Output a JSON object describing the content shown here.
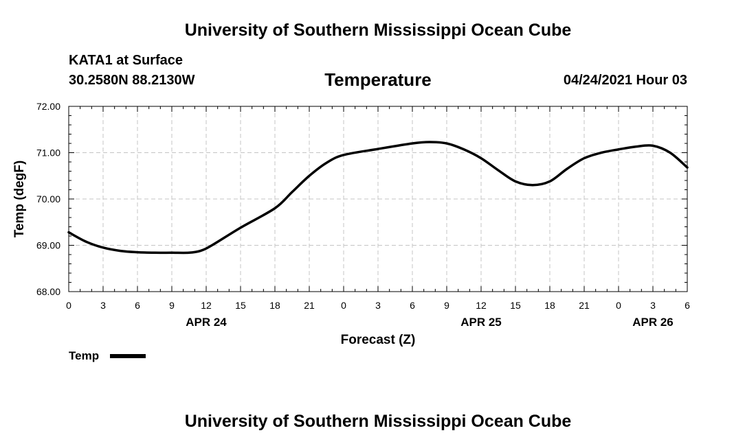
{
  "header": {
    "title": "University of Southern Mississippi Ocean Cube",
    "station": "KATA1 at Surface",
    "location": "30.2580N  88.2130W",
    "variable": "Temperature",
    "datetime": "04/24/2021 Hour 03"
  },
  "footer": {
    "title": "University of Southern Mississippi Ocean Cube"
  },
  "legend": {
    "label": "Temp"
  },
  "chart_data": {
    "type": "line",
    "title": "Temperature",
    "xlabel": "Forecast (Z)",
    "ylabel": "Temp (degF)",
    "xlim": [
      0,
      54
    ],
    "ylim": [
      68,
      72
    ],
    "grid": true,
    "legend_position": "bottom-left",
    "y_ticks": [
      68,
      69,
      70,
      71,
      72
    ],
    "y_tick_labels": [
      "68.00",
      "69.00",
      "70.00",
      "71.00",
      "72.00"
    ],
    "x_ticks": [
      0,
      3,
      6,
      9,
      12,
      15,
      18,
      21,
      24,
      27,
      30,
      33,
      36,
      39,
      42,
      45,
      48,
      51,
      54
    ],
    "x_tick_labels": [
      "0",
      "3",
      "6",
      "9",
      "12",
      "15",
      "18",
      "21",
      "0",
      "3",
      "6",
      "9",
      "12",
      "15",
      "18",
      "21",
      "0",
      "3",
      "6"
    ],
    "date_labels": [
      {
        "x": 12,
        "label": "APR 24"
      },
      {
        "x": 36,
        "label": "APR 25"
      },
      {
        "x": 51,
        "label": "APR 26"
      }
    ],
    "series": [
      {
        "name": "Temp",
        "color": "#000000",
        "x": [
          0,
          1.5,
          3,
          4.5,
          6,
          7.5,
          9,
          10.5,
          11.5,
          12.5,
          15,
          18,
          19.5,
          21,
          22.5,
          24,
          27,
          30,
          31.5,
          33,
          34.5,
          36,
          37.5,
          39,
          40.5,
          42,
          43.5,
          45,
          46.5,
          48,
          49.5,
          51,
          52.5,
          54
        ],
        "values": [
          69.28,
          69.08,
          68.95,
          68.88,
          68.85,
          68.84,
          68.84,
          68.84,
          68.88,
          69.0,
          69.38,
          69.8,
          70.15,
          70.5,
          70.78,
          70.95,
          71.08,
          71.2,
          71.23,
          71.2,
          71.07,
          70.88,
          70.62,
          70.38,
          70.3,
          70.38,
          70.65,
          70.88,
          71.0,
          71.07,
          71.13,
          71.15,
          71.0,
          70.68
        ]
      }
    ]
  }
}
